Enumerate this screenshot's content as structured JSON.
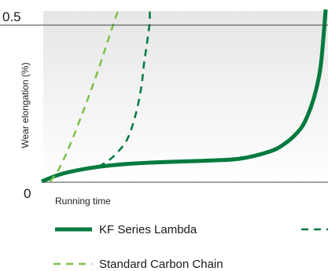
{
  "chart_data": {
    "type": "line",
    "title": "",
    "xlabel": "Running time",
    "ylabel": "Wear elongation (%)",
    "ylim": [
      0,
      0.5
    ],
    "yticks": [
      "0",
      "0.5"
    ],
    "grid": false,
    "reference_line": 0.5,
    "colors": {
      "lambda": "#007a3d",
      "standard": "#7cc04b",
      "plot_bg_top": "#e6e6e6",
      "plot_bg_bottom": "#ffffff"
    },
    "legend": [
      {
        "label": "KF Series Lambda",
        "key": "lambda",
        "style": "solid"
      },
      {
        "label": "",
        "key": "lambda",
        "style": "dashed"
      },
      {
        "label": "Standard Carbon Chain",
        "key": "standard",
        "style": "dashed"
      }
    ],
    "series": [
      {
        "key": "lambda",
        "style": "solid",
        "x": [
          0.0,
          0.05,
          0.1,
          0.2,
          0.3,
          0.4,
          0.5,
          0.6,
          0.7,
          0.8,
          0.85,
          0.9,
          0.93,
          0.96,
          0.98,
          0.99,
          1.0
        ],
        "values": [
          0.0,
          0.018,
          0.031,
          0.047,
          0.056,
          0.061,
          0.064,
          0.067,
          0.073,
          0.095,
          0.117,
          0.156,
          0.197,
          0.272,
          0.354,
          0.437,
          0.55
        ]
      },
      {
        "key": "lambda",
        "style": "dashed",
        "x": [
          0.2,
          0.25,
          0.3,
          0.33,
          0.35,
          0.36,
          0.37,
          0.38,
          0.38
        ],
        "values": [
          0.047,
          0.078,
          0.133,
          0.211,
          0.297,
          0.375,
          0.437,
          0.507,
          0.55
        ]
      },
      {
        "key": "standard",
        "style": "dashed",
        "x": [
          0.03,
          0.06,
          0.1,
          0.15,
          0.2,
          0.24,
          0.27
        ],
        "values": [
          0.0,
          0.039,
          0.117,
          0.234,
          0.359,
          0.469,
          0.55
        ]
      }
    ]
  }
}
